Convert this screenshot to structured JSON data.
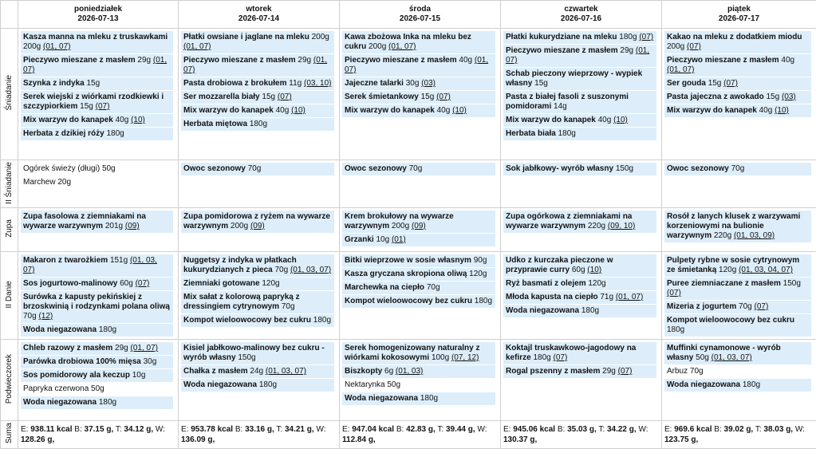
{
  "days": [
    {
      "name": "poniedziałek",
      "date": "2026-07-13"
    },
    {
      "name": "wtorek",
      "date": "2026-07-14"
    },
    {
      "name": "środa",
      "date": "2026-07-15"
    },
    {
      "name": "czwartek",
      "date": "2026-07-16"
    },
    {
      "name": "piątek",
      "date": "2026-07-17"
    }
  ],
  "rows": [
    {
      "label": "Śniadanie",
      "cells": [
        [
          {
            "name": "Kasza manna na mleku z truskawkami",
            "qty": "200g",
            "allergens": "(01, 07)"
          },
          {
            "name": "Pieczywo mieszane z masłem",
            "qty": "29g",
            "allergens": "(01, 07)"
          },
          {
            "name": "Szynka z indyka",
            "qty": "15g"
          },
          {
            "name": "Serek wiejski z wiórkami rzodkiewki i szczypiorkiem",
            "qty": "15g",
            "allergens": "(07)"
          },
          {
            "name": "Mix warzyw do kanapek",
            "qty": "40g",
            "allergens": "(10)"
          },
          {
            "name": "Herbata z dzikiej róży",
            "qty": "180g"
          }
        ],
        [
          {
            "name": "Płatki owsiane i jaglane na mleku",
            "qty": "200g",
            "allergens": "(01, 07)"
          },
          {
            "name": "Pieczywo mieszane z masłem",
            "qty": "29g",
            "allergens": "(01, 07)"
          },
          {
            "name": "Pasta drobiowa z brokułem",
            "qty": "11g",
            "allergens": "(03, 10)"
          },
          {
            "name": "Ser mozzarella biały",
            "qty": "15g",
            "allergens": "(07)"
          },
          {
            "name": "Mix warzyw do kanapek",
            "qty": "40g",
            "allergens": "(10)"
          },
          {
            "name": "Herbata miętowa",
            "qty": "180g"
          }
        ],
        [
          {
            "name": "Kawa zbożowa Inka na mleku bez cukru",
            "qty": "200g",
            "allergens": "(01, 07)"
          },
          {
            "name": "Pieczywo mieszane z masłem",
            "qty": "40g",
            "allergens": "(01, 07)"
          },
          {
            "name": "Jajeczne talarki",
            "qty": "30g",
            "allergens": "(03)"
          },
          {
            "name": "Serek śmietankowy",
            "qty": "15g",
            "allergens": "(07)"
          },
          {
            "name": "Mix warzyw do kanapek",
            "qty": "40g",
            "allergens": "(10)"
          }
        ],
        [
          {
            "name": "Płatki kukurydziane na mleku",
            "qty": "180g",
            "allergens": "(07)"
          },
          {
            "name": "Pieczywo mieszane z masłem",
            "qty": "29g",
            "allergens": "(01, 07)"
          },
          {
            "name": "Schab pieczony wieprzowy - wypiek własny",
            "qty": "15g"
          },
          {
            "name": "Pasta z białej fasoli z suszonymi pomidorami",
            "qty": "14g"
          },
          {
            "name": "Mix warzyw do kanapek",
            "qty": "40g",
            "allergens": "(10)"
          },
          {
            "name": "Herbata biała",
            "qty": "180g"
          }
        ],
        [
          {
            "name": "Kakao na mleku z dodatkiem miodu",
            "qty": "200g",
            "allergens": "(07)"
          },
          {
            "name": "Pieczywo mieszane z masłem",
            "qty": "40g",
            "allergens": "(01, 07)"
          },
          {
            "name": "Ser gouda",
            "qty": "15g",
            "allergens": "(07)"
          },
          {
            "name": "Pasta jajeczna z awokado",
            "qty": "15g",
            "allergens": "(03)"
          },
          {
            "name": "Mix warzyw do kanapek",
            "qty": "40g",
            "allergens": "(10)"
          }
        ]
      ]
    },
    {
      "label": "II Śniadanie",
      "cells": [
        [
          {
            "name": "Ogórek świeży (długi)",
            "qty": "50g",
            "bold": false
          },
          {
            "name": "Marchew",
            "qty": "20g",
            "bold": false
          }
        ],
        [
          {
            "name": "Owoc sezonowy",
            "qty": "70g"
          }
        ],
        [
          {
            "name": "Owoc sezonowy",
            "qty": "70g"
          }
        ],
        [
          {
            "name": "Sok jabłkowy- wyrób własny",
            "qty": "150g"
          }
        ],
        [
          {
            "name": "Owoc sezonowy",
            "qty": "70g"
          }
        ]
      ]
    },
    {
      "label": "Zupa",
      "cells": [
        [
          {
            "name": "Zupa fasolowa z ziemniakami na wywarze warzywnym",
            "qty": "201g",
            "allergens": "(09)"
          }
        ],
        [
          {
            "name": "Zupa pomidorowa z ryżem na wywarze warzywnym",
            "qty": "200g",
            "allergens": "(09)"
          }
        ],
        [
          {
            "name": "Krem brokułowy na wywarze warzywnym",
            "qty": "200g",
            "allergens": "(09)"
          },
          {
            "name": "Grzanki",
            "qty": "10g",
            "allergens": "(01)"
          }
        ],
        [
          {
            "name": "Zupa ogórkowa z ziemniakami na wywarze warzywnym",
            "qty": "220g",
            "allergens": "(09, 10)"
          }
        ],
        [
          {
            "name": "Rosół z lanych klusek z warzywami korzeniowymi na bulionie warzywnym",
            "qty": "220g",
            "allergens": "(01, 03, 09)"
          }
        ]
      ]
    },
    {
      "label": "II Danie",
      "cells": [
        [
          {
            "name": "Makaron z twarożkiem",
            "qty": "151g",
            "allergens": "(01, 03, 07)"
          },
          {
            "name": "Sos jogurtowo-malinowy",
            "qty": "60g",
            "allergens": "(07)"
          },
          {
            "name": "Surówka z kapusty pekińskiej z brzoskwinią i rodzynkami polana oliwą",
            "qty": "70g",
            "allergens": "(12)"
          },
          {
            "name": "Woda niegazowana",
            "qty": "180g"
          }
        ],
        [
          {
            "name": "Nuggetsy z indyka w płatkach kukurydzianych z pieca",
            "qty": "70g",
            "allergens": "(01, 03, 07)"
          },
          {
            "name": "Ziemniaki gotowane",
            "qty": "120g"
          },
          {
            "name": "Mix sałat z kolorową papryką z dressingiem cytrynowym",
            "qty": "70g"
          },
          {
            "name": "Kompot wieloowocowy bez cukru",
            "qty": "180g"
          }
        ],
        [
          {
            "name": "Bitki wieprzowe w sosie własnym",
            "qty": "90g"
          },
          {
            "name": "Kasza gryczana skropiona oliwą",
            "qty": "120g"
          },
          {
            "name": "Marchewka na ciepło",
            "qty": "70g"
          },
          {
            "name": "Kompot wieloowocowy bez cukru",
            "qty": "180g"
          }
        ],
        [
          {
            "name": "Udko z kurczaka pieczone w przyprawie curry",
            "qty": "60g",
            "allergens": "(10)"
          },
          {
            "name": "Ryż basmati z olejem",
            "qty": "120g"
          },
          {
            "name": "Młoda kapusta na ciepło",
            "qty": "71g",
            "allergens": "(01, 07)"
          },
          {
            "name": "Woda niegazowana",
            "qty": "180g"
          }
        ],
        [
          {
            "name": "Pulpety rybne w sosie cytrynowym ze śmietanką",
            "qty": "120g",
            "allergens": "(01, 03, 04, 07)"
          },
          {
            "name": "Puree ziemniaczane z masłem",
            "qty": "150g",
            "allergens": "(07)"
          },
          {
            "name": "Mizeria z jogurtem",
            "qty": "70g",
            "allergens": "(07)"
          },
          {
            "name": "Kompot wieloowocowy bez cukru",
            "qty": "180g"
          }
        ]
      ]
    },
    {
      "label": "Podwieczorek",
      "cells": [
        [
          {
            "name": "Chleb razowy z masłem",
            "qty": "29g",
            "allergens": "(01, 07)"
          },
          {
            "name": "Parówka drobiowa 100% mięsa",
            "qty": "30g"
          },
          {
            "name": "Sos pomidorowy ala keczup",
            "qty": "10g"
          },
          {
            "name": "Papryka czerwona",
            "qty": "50g",
            "bold": false
          },
          {
            "name": "Woda niegazowana",
            "qty": "180g"
          }
        ],
        [
          {
            "name": "Kisiel jabłkowo-malinowy bez cukru - wyrób własny",
            "qty": "150g"
          },
          {
            "name": "Chałka z masłem",
            "qty": "24g",
            "allergens": "(01, 03, 07)"
          },
          {
            "name": "Woda niegazowana",
            "qty": "180g"
          }
        ],
        [
          {
            "name": "Serek homogenizowany naturalny z wiórkami kokosowymi",
            "qty": "100g",
            "allergens": "(07, 12)"
          },
          {
            "name": "Biszkopty",
            "qty": "6g",
            "allergens": "(01, 03)"
          },
          {
            "name": "Nektarynka",
            "qty": "50g",
            "bold": false
          },
          {
            "name": "Woda niegazowana",
            "qty": "180g"
          }
        ],
        [
          {
            "name": "Koktajl truskawkowo-jagodowy na kefirze",
            "qty": "180g",
            "allergens": "(07)"
          },
          {
            "name": "Rogal pszenny z masłem",
            "qty": "29g",
            "allergens": "(07)"
          }
        ],
        [
          {
            "name": "Muffinki cynamonowe - wyrób własny",
            "qty": "50g",
            "allergens": "(01, 03, 07)"
          },
          {
            "name": "Arbuz",
            "qty": "70g",
            "bold": false
          },
          {
            "name": "Woda niegazowana",
            "qty": "180g"
          }
        ]
      ]
    }
  ],
  "sum": {
    "label": "Suma",
    "keys": [
      "E:",
      "B:",
      "T:",
      "W:"
    ],
    "cells": [
      [
        "938.11 kcal",
        "37.15 g,",
        "34.12 g,",
        "128.26 g,"
      ],
      [
        "953.78 kcal",
        "33.16 g,",
        "34.21 g,",
        "136.09 g,"
      ],
      [
        "947.04 kcal",
        "42.83 g,",
        "39.44 g,",
        "112.84 g,"
      ],
      [
        "945.06 kcal",
        "35.03 g,",
        "34.22 g,",
        "130.37 g,"
      ],
      [
        "969.6 kcal",
        "39.02 g,",
        "38.03 g,",
        "123.75 g,"
      ]
    ]
  }
}
